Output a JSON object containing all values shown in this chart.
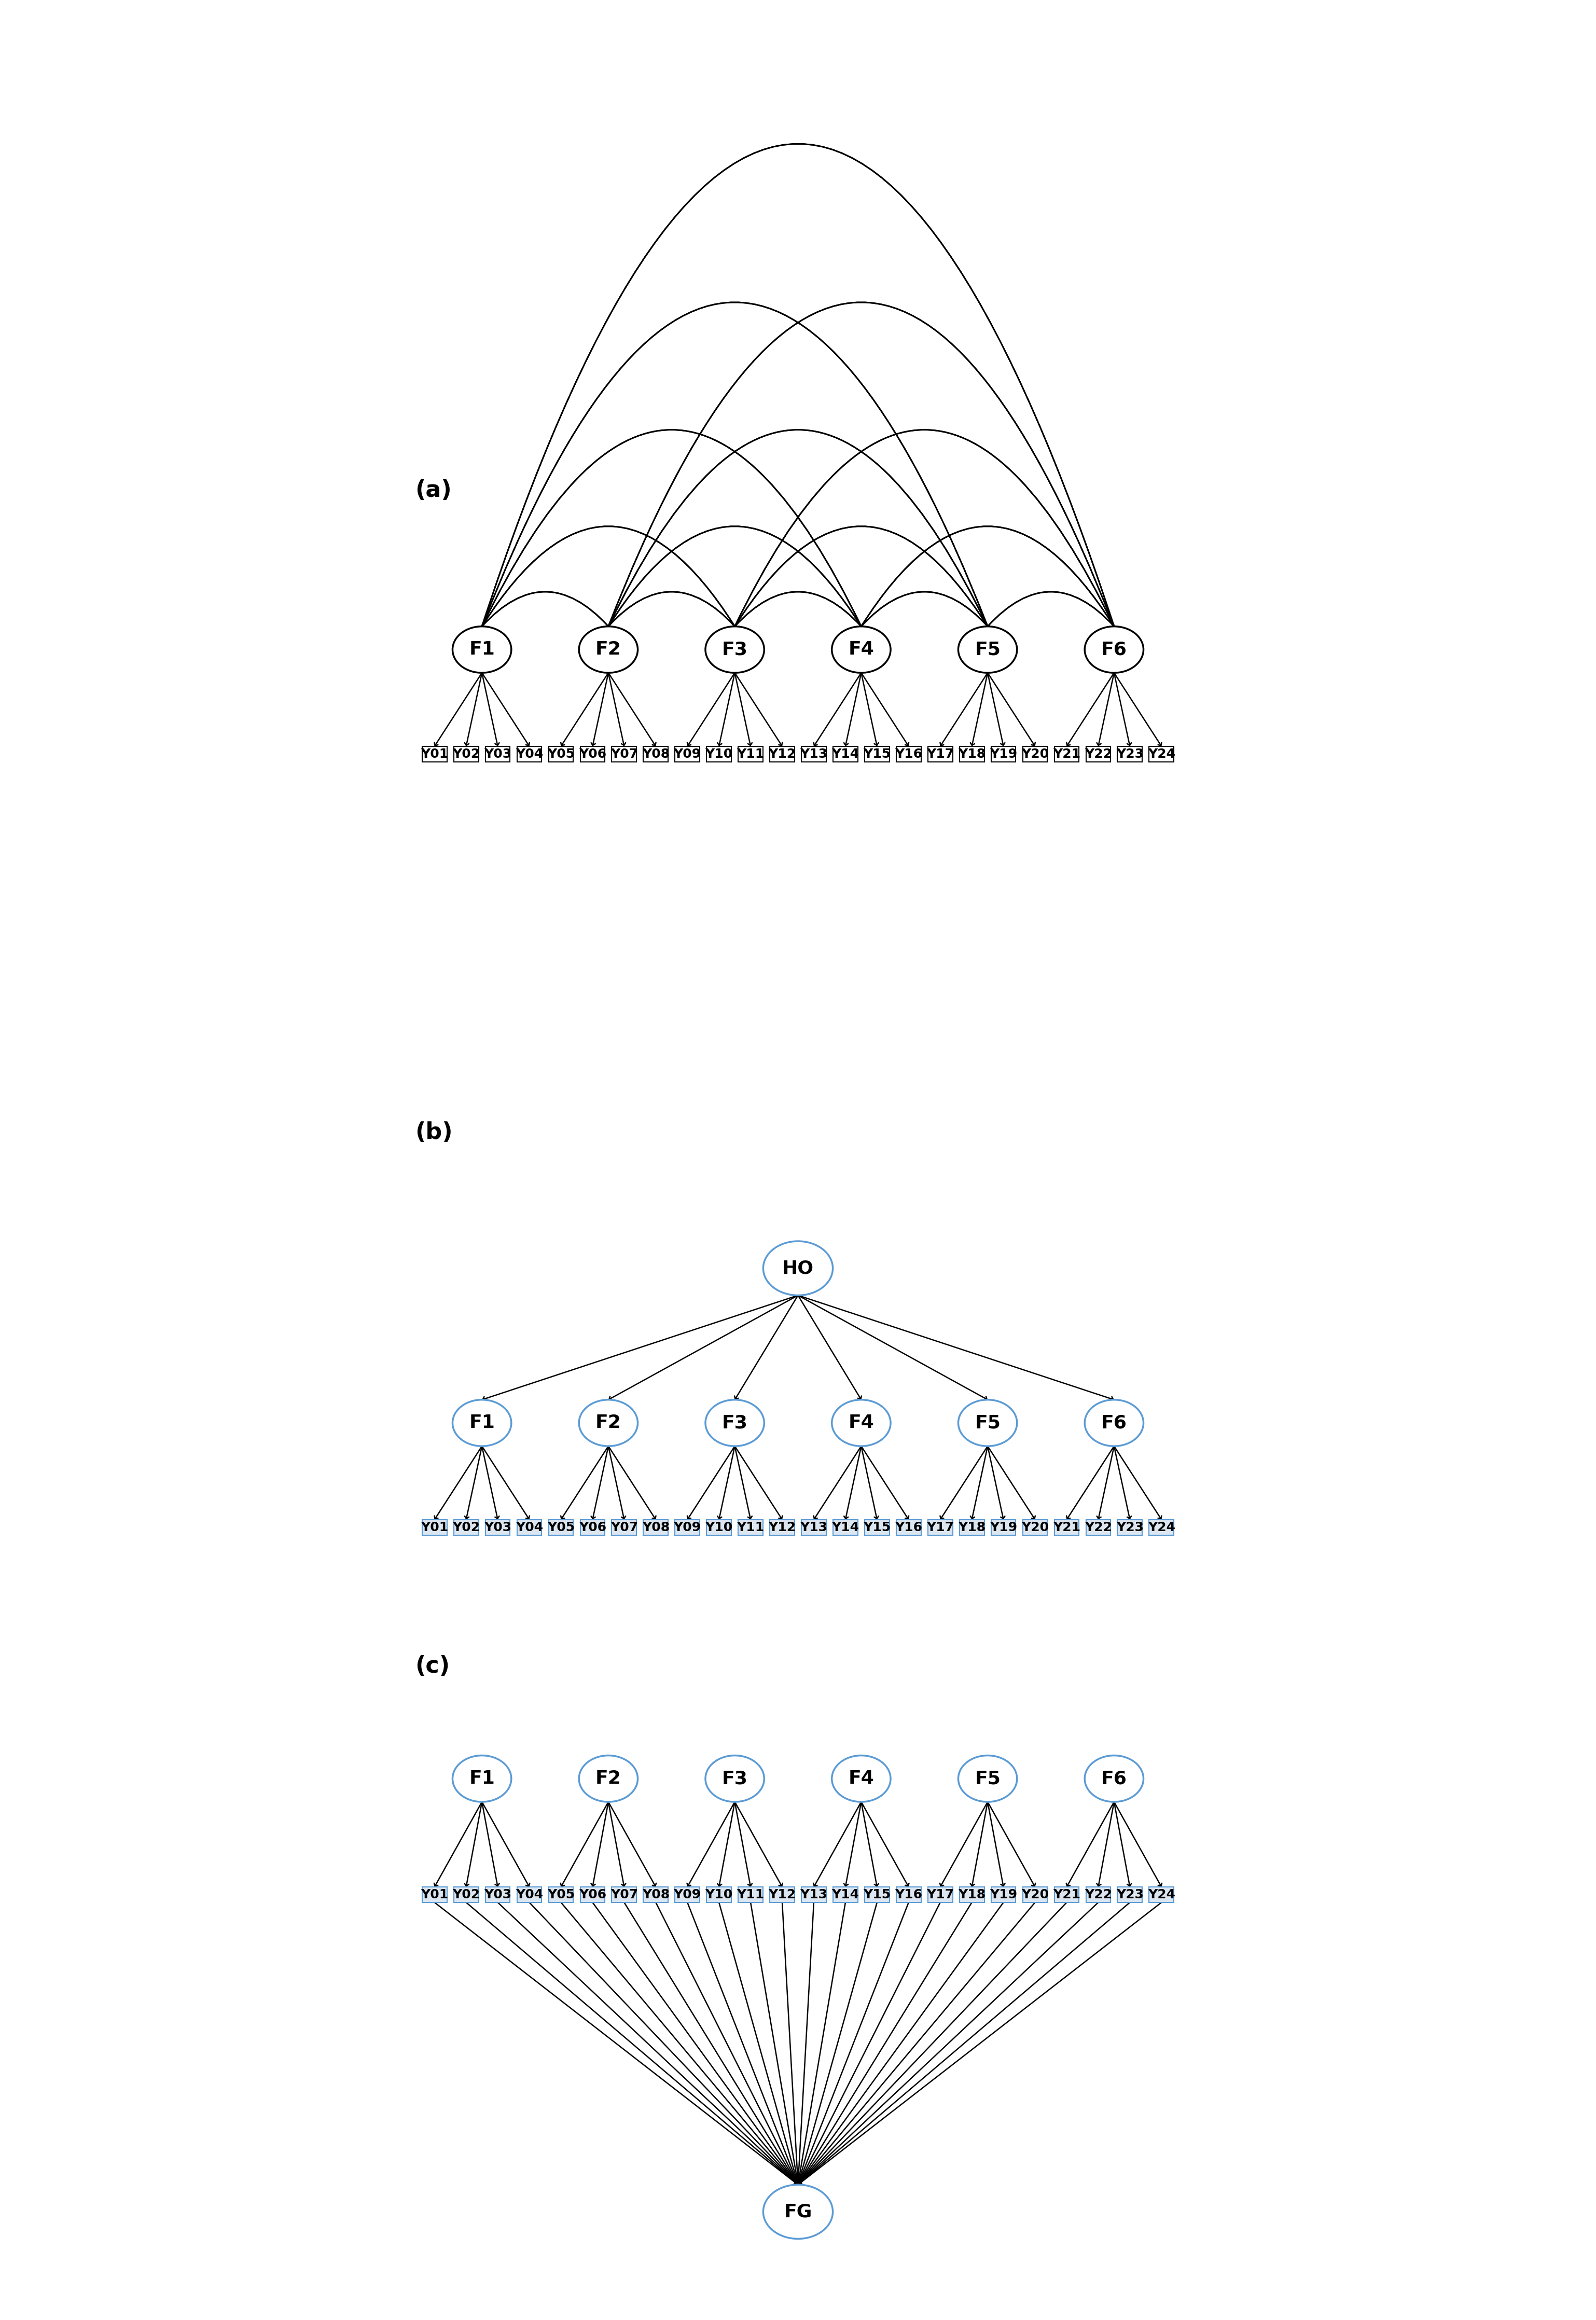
{
  "panels": [
    "a",
    "b",
    "c"
  ],
  "factors": [
    "F1",
    "F2",
    "F3",
    "F4",
    "F5",
    "F6"
  ],
  "indicators": [
    "Y01",
    "Y02",
    "Y03",
    "Y04",
    "Y05",
    "Y06",
    "Y07",
    "Y08",
    "Y09",
    "Y10",
    "Y11",
    "Y12",
    "Y13",
    "Y14",
    "Y15",
    "Y16",
    "Y17",
    "Y18",
    "Y19",
    "Y20",
    "Y21",
    "Y22",
    "Y23",
    "Y24"
  ],
  "factor_indicators": {
    "F1": [
      "Y01",
      "Y02",
      "Y03",
      "Y04"
    ],
    "F2": [
      "Y05",
      "Y06",
      "Y07",
      "Y08"
    ],
    "F3": [
      "Y09",
      "Y10",
      "Y11",
      "Y12"
    ],
    "F4": [
      "Y13",
      "Y14",
      "Y15",
      "Y16"
    ],
    "F5": [
      "Y17",
      "Y18",
      "Y19",
      "Y20"
    ],
    "F6": [
      "Y21",
      "Y22",
      "Y23",
      "Y24"
    ]
  },
  "bg_color": "#ffffff",
  "ellipse_color_a": "#ffffff",
  "ellipse_edge_a": "#000000",
  "ellipse_color_bc": "#ffffff",
  "ellipse_edge_bc": "#5b9bd5",
  "box_color_a": "#ffffff",
  "box_edge_a": "#000000",
  "box_color_bc": "#dce6f1",
  "box_edge_bc": "#5b9bd5",
  "arrow_color": "#000000",
  "panel_label_fontsize": 32,
  "indicator_fontsize": 18,
  "factor_fontsize": 26
}
